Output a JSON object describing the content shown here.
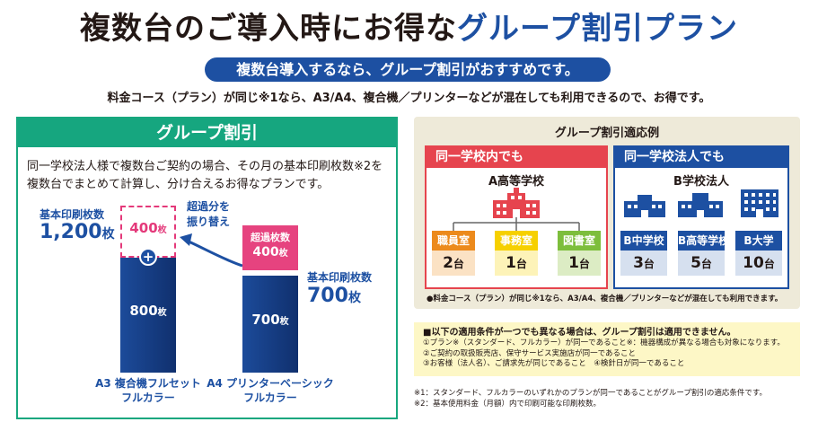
{
  "header": {
    "title_black": "複数台のご導入時にお得な",
    "title_blue": "グループ割引プラン",
    "pill": "複数台導入するなら、グループ割引がおすすめです。",
    "lead": "料金コース（プラン）が同じ※1なら、A3/A4、複合機／プリンターなどが混在しても利用できるので、お得です。"
  },
  "group_panel": {
    "heading": "グループ割引",
    "desc_line1": "同一学校法人様で複数台ご契約の場合、その月の基本印刷枚数※2を",
    "desc_line2": "複数台でまとめて計算し、分け合えるお得なプランです。",
    "left_label": "基本印刷枚数",
    "left_num": "1,200",
    "unit_mai": "枚",
    "swap_line1": "超過分を",
    "swap_line2": "振り替え",
    "dash_num": "400",
    "plus": "+",
    "blue1_num": "800",
    "pink_label": "超過枚数",
    "pink_num": "400",
    "right_label": "基本印刷枚数",
    "right_num": "700",
    "blue2_num": "700",
    "cap1_line1": "A3 複合機フルセット",
    "cap1_line2": "フルカラー",
    "cap2_line1": "A4 プリンターベーシック",
    "cap2_line2": "フルカラー"
  },
  "example": {
    "title": "グループ割引適応例",
    "a_head": "同一学校内でも",
    "a_school": "A高等学校",
    "a_rooms": [
      {
        "name": "職員室",
        "count": "2",
        "unit": "台"
      },
      {
        "name": "事務室",
        "count": "1",
        "unit": "台"
      },
      {
        "name": "図書室",
        "count": "1",
        "unit": "台"
      }
    ],
    "b_head": "同一学校法人でも",
    "b_school": "B学校法人",
    "b_rooms": [
      {
        "name": "B中学校",
        "count": "3",
        "unit": "台"
      },
      {
        "name": "B高等学校",
        "count": "5",
        "unit": "台"
      },
      {
        "name": "B大学",
        "count": "10",
        "unit": "台"
      }
    ],
    "note": "●料金コース（プラン）が同じ※1なら、A3/A4、複合機／プリンターなどが混在しても利用できます。"
  },
  "conditions": {
    "title": "■以下の適用条件が一つでも異なる場合は、グループ割引は適用できません。",
    "line1": "①プラン※（スタンダード、フルカラー）が同一であること※：機器構成が異なる場合も対象になります。",
    "line2": "②ご契約の取扱販売店、保守サービス実施店が同一であること",
    "line3": "③お客様（法人名）、ご請求先が同じであること　④検針日が同一であること"
  },
  "footnotes": {
    "f1": "※1：スタンダード、フルカラーのいずれかのプランが同一であることがグループ割引の適応条件です。",
    "f2": "※2：基本使用料金（月額）内で印刷可能な印刷枚数。"
  },
  "colors": {
    "blue": "#1d50a2",
    "green": "#16a67f",
    "pink": "#e6437f",
    "red": "#e6444e",
    "orange": "#ec8a1c",
    "yellow": "#f6d000",
    "lightgreen": "#7dbe3c"
  }
}
